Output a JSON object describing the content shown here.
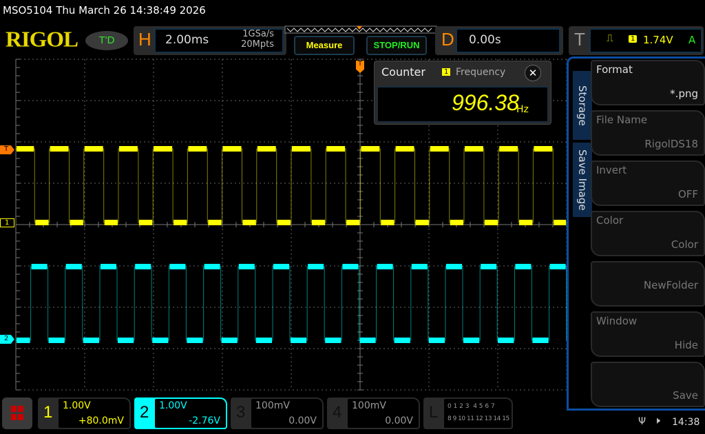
{
  "title": "MSO5104  Thu March 26 14:38:49 2026",
  "logo": "RIGOL",
  "trigger_status": "T'D",
  "horizontal": {
    "letter": "H",
    "timebase": "2.00ms",
    "sample_rate": "1GSa/s",
    "memory_depth": "20Mpts"
  },
  "buttons": {
    "measure": "Measure",
    "stop_run": "STOP/RUN"
  },
  "delay": {
    "letter": "D",
    "value": "0.00s"
  },
  "trigger": {
    "letter": "T",
    "channel": "1",
    "level": "1.74V",
    "mode": "A"
  },
  "counter": {
    "title": "Counter",
    "channel": "1",
    "type": "Frequency",
    "value": "996.38",
    "unit": "Hz"
  },
  "markers": {
    "trigger": "T",
    "ch1": "1",
    "ch2": "2"
  },
  "side_menu": {
    "tabs": [
      "Storage",
      "Save Image"
    ],
    "items": [
      {
        "label": "Format",
        "value": "*.png"
      },
      {
        "label": "File Name",
        "value": "RigolDS18"
      },
      {
        "label": "Invert",
        "value": "OFF"
      },
      {
        "label": "Color",
        "value": "Color"
      },
      {
        "label": "",
        "value": "NewFolder"
      },
      {
        "label": "Window",
        "value": "Hide"
      },
      {
        "label": "",
        "value": "Save"
      }
    ]
  },
  "channels": [
    {
      "n": "1",
      "scale": "1.00V",
      "offset": "+80.0mV",
      "color": "#ffff00"
    },
    {
      "n": "2",
      "scale": "1.00V",
      "offset": "-2.76V",
      "color": "#00ffff"
    },
    {
      "n": "3",
      "scale": "100mV",
      "offset": "0.00V",
      "color": "#888888"
    },
    {
      "n": "4",
      "scale": "100mV",
      "offset": "0.00V",
      "color": "#888888"
    }
  ],
  "logic": {
    "letter": "L",
    "row1": "0 1 2 3  4 5 6 7",
    "row2": "8 9 10 11 12 13 14 15"
  },
  "status": {
    "time": "14:38"
  }
}
